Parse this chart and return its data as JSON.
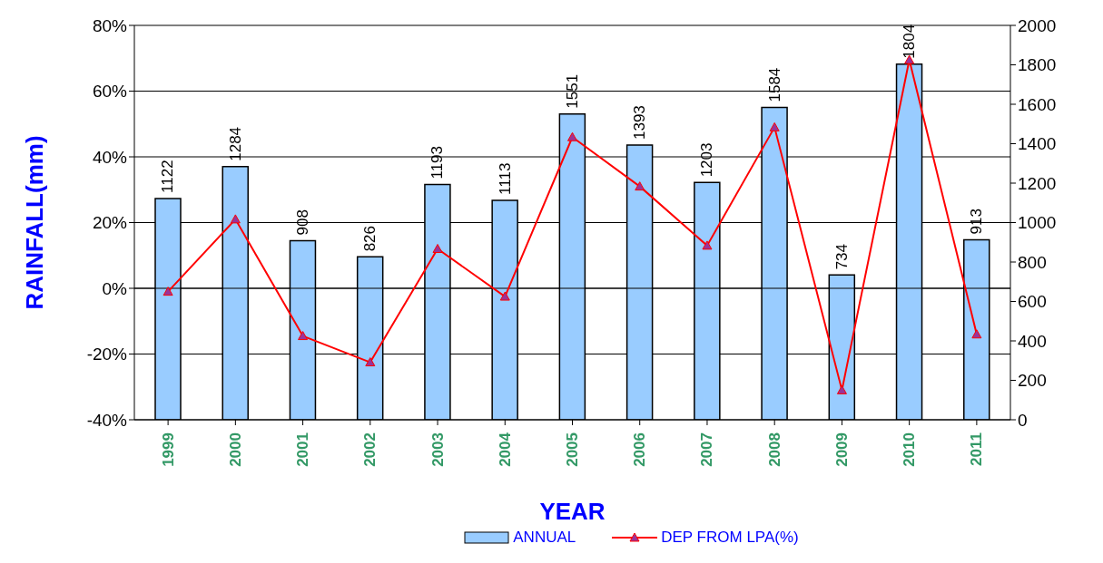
{
  "chart_data": {
    "type": "bar",
    "xlabel": "YEAR",
    "ylabel": "RAINFALL(mm)",
    "categories": [
      "1999",
      "2000",
      "2001",
      "2002",
      "2003",
      "2004",
      "2005",
      "2006",
      "2007",
      "2008",
      "2009",
      "2010",
      "2011"
    ],
    "series": [
      {
        "name": "ANNUAL",
        "axis": "y2",
        "color": "#99ccff",
        "values": [
          1122,
          1284,
          908,
          826,
          1193,
          1113,
          1551,
          1393,
          1203,
          1584,
          734,
          1804,
          913
        ],
        "value_labels": [
          "1122",
          "1284",
          "908",
          "826",
          "1193",
          "1113",
          "1551",
          "1393",
          "1203",
          "1584",
          "734",
          "1804",
          "913"
        ]
      },
      {
        "name": "DEP FROM LPA(%)",
        "type": "line",
        "axis": "y",
        "color": "#ff0000",
        "marker": "triangle",
        "values": [
          -1,
          21,
          -14.5,
          -22.5,
          12,
          -2.5,
          46,
          31,
          13,
          49,
          -31,
          69.5,
          -14
        ]
      }
    ],
    "ylim": [
      -40,
      80
    ],
    "yticks": [
      {
        "value": -40,
        "label": "-40%"
      },
      {
        "value": -20,
        "label": "-20%"
      },
      {
        "value": 0,
        "label": "0%"
      },
      {
        "value": 20,
        "label": "20%"
      },
      {
        "value": 40,
        "label": "40%"
      },
      {
        "value": 60,
        "label": "60%"
      },
      {
        "value": 80,
        "label": "80%"
      }
    ],
    "y2lim": [
      0,
      2000
    ],
    "y2ticks": [
      0,
      200,
      400,
      600,
      800,
      1000,
      1200,
      1400,
      1600,
      1800,
      2000
    ],
    "grid": "y",
    "legend": "bottom"
  }
}
